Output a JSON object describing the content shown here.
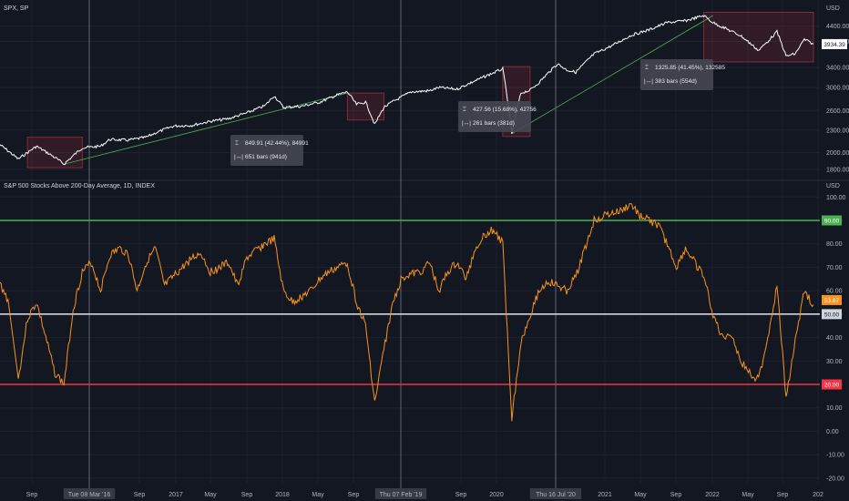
{
  "chart_data": [
    {
      "type": "line",
      "title": "SPX, SP",
      "currency": "USD",
      "y_ticks": [
        1800.0,
        2000.0,
        2300.0,
        2600.0,
        3000.0,
        3400.0,
        4000.0,
        4400.0
      ],
      "y_scale": "log",
      "ylim": [
        1720,
        4950
      ],
      "last_value_label": "3934.39",
      "series": [
        {
          "x": [
            "2015-07",
            "2015-09",
            "2015-11",
            "2016-01",
            "2016-02",
            "2016-04",
            "2016-06",
            "2016-07",
            "2016-09",
            "2016-11",
            "2016-12",
            "2017-02",
            "2017-04",
            "2017-06",
            "2017-08",
            "2017-10",
            "2017-12",
            "2018-01",
            "2018-02",
            "2018-04",
            "2018-06",
            "2018-08",
            "2018-09",
            "2018-10",
            "2018-11",
            "2018-12",
            "2019-01",
            "2019-02",
            "2019-04",
            "2019-06",
            "2019-07",
            "2019-09",
            "2019-11",
            "2020-01",
            "2020-02",
            "2020-03",
            "2020-04",
            "2020-05",
            "2020-06",
            "2020-08",
            "2020-09",
            "2020-10",
            "2020-12",
            "2021-02",
            "2021-04",
            "2021-06",
            "2021-08",
            "2021-10",
            "2021-12",
            "2022-01",
            "2022-02",
            "2022-04",
            "2022-06",
            "2022-07",
            "2022-08",
            "2022-09",
            "2022-10",
            "2022-11",
            "2022-12"
          ],
          "values": [
            2100,
            1920,
            2080,
            1940,
            1860,
            2060,
            2080,
            2170,
            2160,
            2200,
            2260,
            2360,
            2370,
            2430,
            2470,
            2560,
            2680,
            2850,
            2650,
            2670,
            2740,
            2870,
            2920,
            2700,
            2740,
            2380,
            2650,
            2750,
            2920,
            2940,
            3000,
            2970,
            3130,
            3290,
            3370,
            2250,
            2900,
            2950,
            3100,
            3480,
            3350,
            3300,
            3700,
            3900,
            4150,
            4300,
            4500,
            4550,
            4700,
            4500,
            4380,
            4150,
            3780,
            4000,
            4250,
            3650,
            3700,
            4050,
            3934
          ]
        }
      ],
      "annotations": [
        {
          "range": "849.91 (42.44%), 84991",
          "bars": "651 bars (941d)"
        },
        {
          "range": "427.56 (15.68%), 42756",
          "bars": "261 bars (381d)"
        },
        {
          "range": "1325.85 (41.45%), 132585",
          "bars": "383 bars (554d)"
        }
      ]
    },
    {
      "type": "line",
      "title": "S&P 500 Stocks Above 200-Day Average, 1D, INDEX",
      "currency": "USD",
      "y_ticks": [
        -20.0,
        -10.0,
        0.0,
        10.0,
        20.0,
        30.0,
        40.0,
        50.0,
        60.0,
        70.0,
        80.0,
        90.0,
        100.0
      ],
      "ylim": [
        -22,
        104
      ],
      "last_value_label": "53.87",
      "horizontal_lines": [
        {
          "value": 90.0,
          "label": "90.00",
          "color": "#4caf50"
        },
        {
          "value": 50.0,
          "label": "50.00",
          "color": "#d1d4dc"
        },
        {
          "value": 20.0,
          "label": "20.00",
          "color": "#f23645"
        }
      ],
      "series": [
        {
          "x": [
            "2015-07",
            "2015-08",
            "2015-08b",
            "2015-09",
            "2015-10",
            "2015-11",
            "2015-12",
            "2016-01",
            "2016-02",
            "2016-03",
            "2016-04",
            "2016-05",
            "2016-06",
            "2016-07",
            "2016-08",
            "2016-09",
            "2016-10",
            "2016-11",
            "2016-12",
            "2017-01",
            "2017-03",
            "2017-04",
            "2017-05",
            "2017-06",
            "2017-08",
            "2017-09",
            "2017-10",
            "2017-12",
            "2018-01",
            "2018-02",
            "2018-03",
            "2018-05",
            "2018-06",
            "2018-07",
            "2018-08",
            "2018-09",
            "2018-10",
            "2018-11",
            "2018-12",
            "2019-01",
            "2019-02",
            "2019-03",
            "2019-05",
            "2019-06",
            "2019-07",
            "2019-08",
            "2019-09",
            "2019-10",
            "2019-11",
            "2019-12",
            "2020-01",
            "2020-02",
            "2020-03",
            "2020-04",
            "2020-05",
            "2020-06",
            "2020-07",
            "2020-08",
            "2020-09",
            "2020-10",
            "2020-11",
            "2020-12",
            "2021-01",
            "2021-02",
            "2021-03",
            "2021-04",
            "2021-05",
            "2021-06",
            "2021-07",
            "2021-08",
            "2021-09",
            "2021-10",
            "2021-11",
            "2021-12",
            "2022-01",
            "2022-02",
            "2022-03",
            "2022-04",
            "2022-05",
            "2022-06",
            "2022-07",
            "2022-08",
            "2022-09",
            "2022-10",
            "2022-11",
            "2022-12"
          ],
          "values": [
            63,
            55,
            45,
            22,
            48,
            55,
            40,
            25,
            20,
            52,
            68,
            72,
            60,
            75,
            78,
            76,
            60,
            72,
            78,
            62,
            70,
            74,
            76,
            68,
            72,
            62,
            74,
            80,
            82,
            60,
            55,
            60,
            65,
            68,
            70,
            72,
            55,
            45,
            12,
            35,
            55,
            66,
            68,
            72,
            60,
            68,
            72,
            65,
            78,
            84,
            86,
            80,
            6,
            38,
            50,
            60,
            64,
            62,
            60,
            66,
            78,
            90,
            92,
            93,
            94,
            97,
            92,
            90,
            88,
            80,
            70,
            78,
            72,
            66,
            50,
            40,
            42,
            30,
            25,
            22,
            40,
            62,
            15,
            38,
            60,
            54
          ]
        }
      ]
    }
  ],
  "x_axis": {
    "ticks": [
      "Sep",
      "Tue 08 Mar '16",
      "Sep",
      "2017",
      "May",
      "Sep",
      "2018",
      "May",
      "Sep",
      "Thu 07 Feb '19",
      "Sep",
      "2020",
      "Thu 16 Jul '20",
      "2021",
      "May",
      "Sep",
      "2022",
      "May",
      "Sep",
      "202"
    ],
    "highlighted": [
      "Tue 08 Mar '16",
      "Thu 07 Feb '19",
      "Thu 16 Jul '20"
    ]
  },
  "colors": {
    "background": "#131722",
    "price_line": "#ffffff",
    "trend_line": "#4caf50",
    "indicator_line": "#f7931e",
    "box_border": "#9c2d3a",
    "box_fill": "rgba(156,45,58,0.22)",
    "grid": "#1e222d",
    "text": "#b2b5be"
  }
}
